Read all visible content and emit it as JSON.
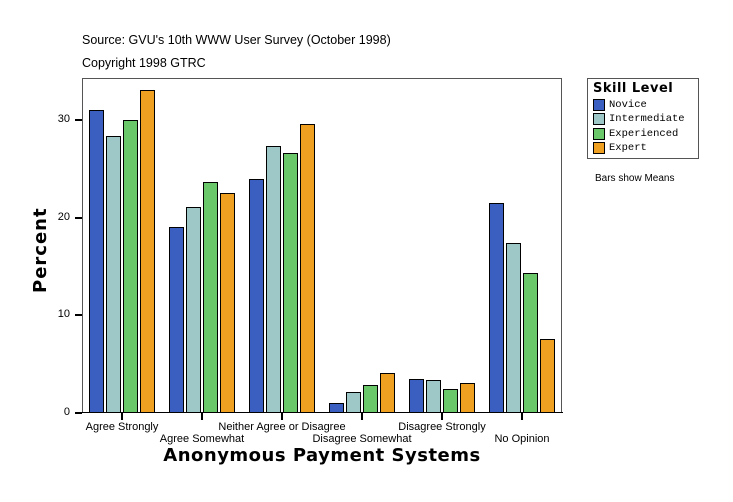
{
  "header": {
    "source": "Source: GVU's 10th WWW User Survey (October 1998)",
    "copyright": "Copyright 1998 GTRC"
  },
  "note": "Bars show Means",
  "colors": {
    "Novice": "#3a5fc0",
    "Intermediate": "#9ec8c8",
    "Experienced": "#6ac86a",
    "Expert": "#f0a020"
  },
  "chart_data": {
    "type": "bar",
    "title": "",
    "xlabel": "Anonymous Payment Systems",
    "ylabel": "Percent",
    "ylim": [
      0,
      34
    ],
    "yticks": [
      0,
      10,
      20,
      30
    ],
    "grid": false,
    "legend_title": "Skill Level",
    "legend_position": "right",
    "categories": [
      "Agree Strongly",
      "Agree Somewhat",
      "Neither Agree or Disagree",
      "Disagree Somewhat",
      "Disagree Strongly",
      "No Opinion"
    ],
    "series": [
      {
        "name": "Novice",
        "values": [
          31.0,
          19.0,
          24.0,
          1.0,
          3.5,
          21.5
        ]
      },
      {
        "name": "Intermediate",
        "values": [
          28.4,
          21.1,
          27.3,
          2.1,
          3.4,
          17.4
        ]
      },
      {
        "name": "Experienced",
        "values": [
          30.0,
          23.6,
          26.6,
          2.9,
          2.5,
          14.3
        ]
      },
      {
        "name": "Expert",
        "values": [
          33.1,
          22.5,
          29.6,
          4.1,
          3.1,
          7.6
        ]
      }
    ]
  }
}
